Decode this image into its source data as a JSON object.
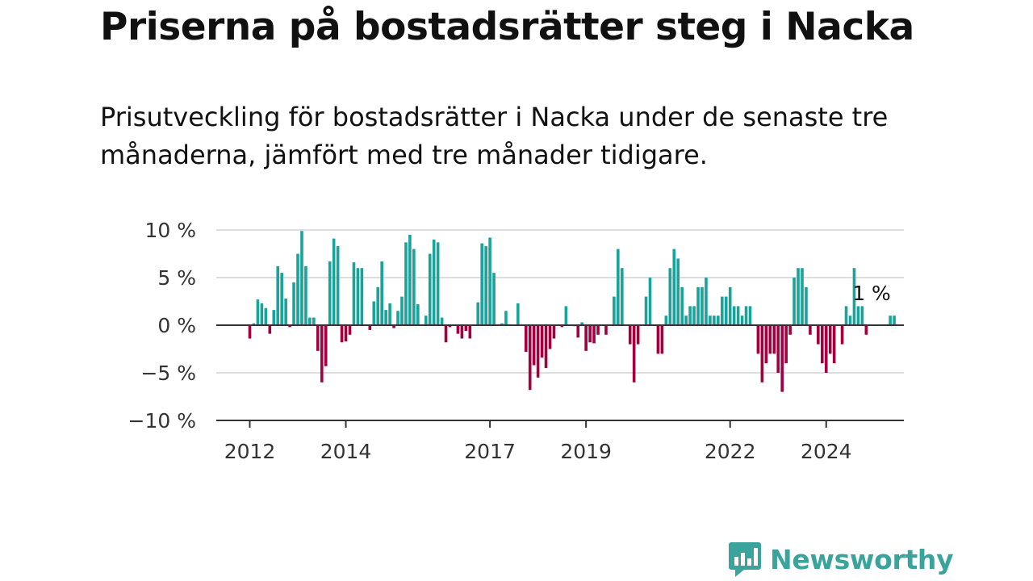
{
  "header": {
    "title": "Priserna på bostadsrätter steg i Nacka",
    "subtitle": "Prisutveckling för bostadsrätter i Nacka under de senaste tre månaderna, jämfört med tre månader tidigare."
  },
  "logo": {
    "text": "Newsworthy",
    "icon": "newsworthy-bar-chart-icon",
    "color": "#3aa39b"
  },
  "chart_data": {
    "type": "bar",
    "title": "Priserna på bostadsrätter steg i Nacka",
    "subtitle": "Prisutveckling för bostadsrätter i Nacka under de senaste tre månaderna, jämfört med tre månader tidigare.",
    "x_unit": "month",
    "x_start": "2012-01",
    "x_end": "2025-06",
    "y_ticks": [
      10,
      5,
      0,
      -5,
      -10
    ],
    "y_tick_labels": [
      "10 %",
      "5 %",
      "0 %",
      "−5 %",
      "−10 %"
    ],
    "x_ticks": [
      {
        "label": "2012",
        "date": "2012-01"
      },
      {
        "label": "2014",
        "date": "2014-01"
      },
      {
        "label": "2017",
        "date": "2017-01"
      },
      {
        "label": "2019",
        "date": "2019-01"
      },
      {
        "label": "2022",
        "date": "2022-01"
      },
      {
        "label": "2024",
        "date": "2024-01"
      }
    ],
    "ylim": [
      -10,
      10
    ],
    "grid": true,
    "colors": {
      "positive": "#1aa39b",
      "negative": "#a3003f",
      "grid": "#dddddd",
      "axis": "#333333"
    },
    "annotation": {
      "text": "1 %",
      "date": "2025-06",
      "value": 1
    },
    "dates": [
      "2012-01",
      "2012-02",
      "2012-03",
      "2012-04",
      "2012-05",
      "2012-06",
      "2012-07",
      "2012-08",
      "2012-09",
      "2012-10",
      "2012-11",
      "2012-12",
      "2013-01",
      "2013-02",
      "2013-03",
      "2013-04",
      "2013-05",
      "2013-06",
      "2013-07",
      "2013-08",
      "2013-09",
      "2013-10",
      "2013-11",
      "2013-12",
      "2014-01",
      "2014-02",
      "2014-03",
      "2014-04",
      "2014-05",
      "2014-06",
      "2014-07",
      "2014-08",
      "2014-09",
      "2014-10",
      "2014-11",
      "2014-12",
      "2015-01",
      "2015-02",
      "2015-03",
      "2015-04",
      "2015-05",
      "2015-06",
      "2015-07",
      "2015-08",
      "2015-09",
      "2015-10",
      "2015-11",
      "2015-12",
      "2016-01",
      "2016-02",
      "2016-03",
      "2016-04",
      "2016-05",
      "2016-06",
      "2016-07",
      "2016-08",
      "2016-09",
      "2016-10",
      "2016-11",
      "2016-12",
      "2017-01",
      "2017-02",
      "2017-03",
      "2017-04",
      "2017-05",
      "2017-06",
      "2017-07",
      "2017-08",
      "2017-09",
      "2017-10",
      "2017-11",
      "2017-12",
      "2018-01",
      "2018-02",
      "2018-03",
      "2018-04",
      "2018-05",
      "2018-06",
      "2018-07",
      "2018-08",
      "2018-09",
      "2018-10",
      "2018-11",
      "2018-12",
      "2019-01",
      "2019-02",
      "2019-03",
      "2019-04",
      "2019-05",
      "2019-06",
      "2019-07",
      "2019-08",
      "2019-09",
      "2019-10",
      "2019-11",
      "2019-12",
      "2020-01",
      "2020-02",
      "2020-03",
      "2020-04",
      "2020-05",
      "2020-06",
      "2020-07",
      "2020-08",
      "2020-09",
      "2020-10",
      "2020-11",
      "2020-12",
      "2021-01",
      "2021-02",
      "2021-03",
      "2021-04",
      "2021-05",
      "2021-06",
      "2021-07",
      "2021-08",
      "2021-09",
      "2021-10",
      "2021-11",
      "2021-12",
      "2022-01",
      "2022-02",
      "2022-03",
      "2022-04",
      "2022-05",
      "2022-06",
      "2022-07",
      "2022-08",
      "2022-09",
      "2022-10",
      "2022-11",
      "2022-12",
      "2023-01",
      "2023-02",
      "2023-03",
      "2023-04",
      "2023-05",
      "2023-06",
      "2023-07",
      "2023-08",
      "2023-09",
      "2023-10",
      "2023-11",
      "2023-12",
      "2024-01",
      "2024-02",
      "2024-03",
      "2024-04",
      "2024-05",
      "2024-06",
      "2024-07",
      "2024-08",
      "2024-09",
      "2024-10",
      "2024-11",
      "2024-12",
      "2025-01",
      "2025-02",
      "2025-03",
      "2025-04",
      "2025-05",
      "2025-06"
    ],
    "values": [
      -1.4,
      0.2,
      2.7,
      2.3,
      1.8,
      -0.9,
      1.6,
      6.2,
      5.5,
      2.8,
      -0.2,
      4.5,
      7.5,
      9.9,
      6.2,
      0.8,
      0.8,
      -2.7,
      -6.0,
      -4.3,
      6.7,
      9.1,
      8.3,
      -1.8,
      -1.7,
      -1.0,
      6.6,
      6.0,
      6.0,
      0.0,
      -0.5,
      2.5,
      4.0,
      6.7,
      1.6,
      2.3,
      -0.3,
      1.5,
      3.0,
      8.7,
      9.5,
      8.0,
      2.2,
      0.0,
      1.0,
      7.5,
      9.0,
      8.7,
      0.8,
      -1.8,
      -0.2,
      0.0,
      -0.9,
      -1.4,
      -0.6,
      -1.4,
      0.0,
      2.4,
      8.6,
      8.3,
      9.2,
      5.5,
      0.0,
      0.2,
      1.5,
      0.1,
      0.0,
      2.3,
      0.0,
      -2.8,
      -6.8,
      -4.2,
      -5.5,
      -3.4,
      -4.5,
      -2.5,
      -1.4,
      0.0,
      -0.2,
      2.0,
      0.0,
      -0.1,
      -1.3,
      0.3,
      -2.7,
      -1.8,
      -1.9,
      -1.0,
      0.0,
      -1.0,
      0.0,
      3.0,
      8.0,
      6.0,
      0.0,
      -2.0,
      -6.0,
      -2.0,
      0.0,
      3.0,
      5.0,
      0.0,
      -3.0,
      -3.0,
      1.0,
      6.0,
      8.0,
      7.0,
      4.0,
      1.0,
      2.0,
      2.0,
      4.0,
      4.0,
      5.0,
      1.0,
      1.0,
      1.0,
      3.0,
      3.0,
      4.0,
      2.0,
      2.0,
      1.0,
      2.0,
      2.0,
      0.0,
      -3.0,
      -6.0,
      -4.0,
      -3.0,
      -3.0,
      -5.0,
      -7.0,
      -4.0,
      -1.0,
      5.0,
      6.0,
      6.0,
      4.0,
      -1.0,
      0.0,
      -2.0,
      -4.0,
      -5.0,
      -3.0,
      -4.0,
      0.0,
      -2.0,
      2.0,
      1.0,
      6.0,
      2.0,
      2.0,
      -1.0,
      0.0,
      0.0,
      0.0,
      0.0,
      0.0,
      1.0,
      1.0
    ]
  }
}
